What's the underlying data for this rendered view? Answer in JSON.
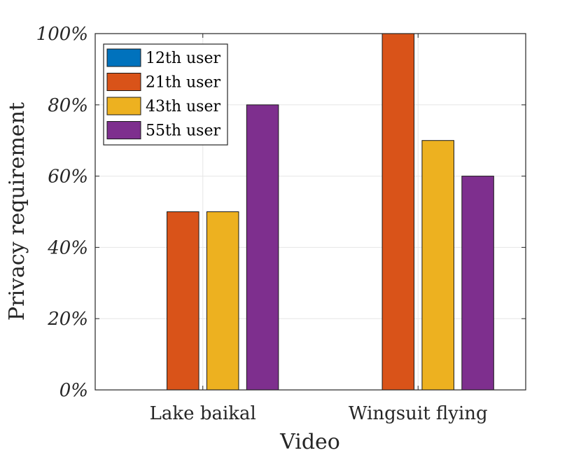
{
  "chart_data": {
    "type": "bar",
    "title": "",
    "xlabel": "Video",
    "ylabel": "Privacy requirement",
    "categories": [
      "Lake baikal",
      "Wingsuit flying"
    ],
    "ylim": [
      0,
      100
    ],
    "yticks": [
      0,
      20,
      40,
      60,
      80,
      100
    ],
    "ytick_labels": [
      "0%",
      "20%",
      "40%",
      "60%",
      "80%",
      "100%"
    ],
    "grid": true,
    "legend_position": "top-left",
    "series": [
      {
        "name": "12th user",
        "color": "#0072BD",
        "values": [
          0,
          0
        ]
      },
      {
        "name": "21th user",
        "color": "#D95319",
        "values": [
          50,
          100
        ]
      },
      {
        "name": "43th user",
        "color": "#EDB120",
        "values": [
          50,
          70
        ]
      },
      {
        "name": "55th user",
        "color": "#7E2F8E",
        "values": [
          80,
          60
        ]
      }
    ]
  }
}
